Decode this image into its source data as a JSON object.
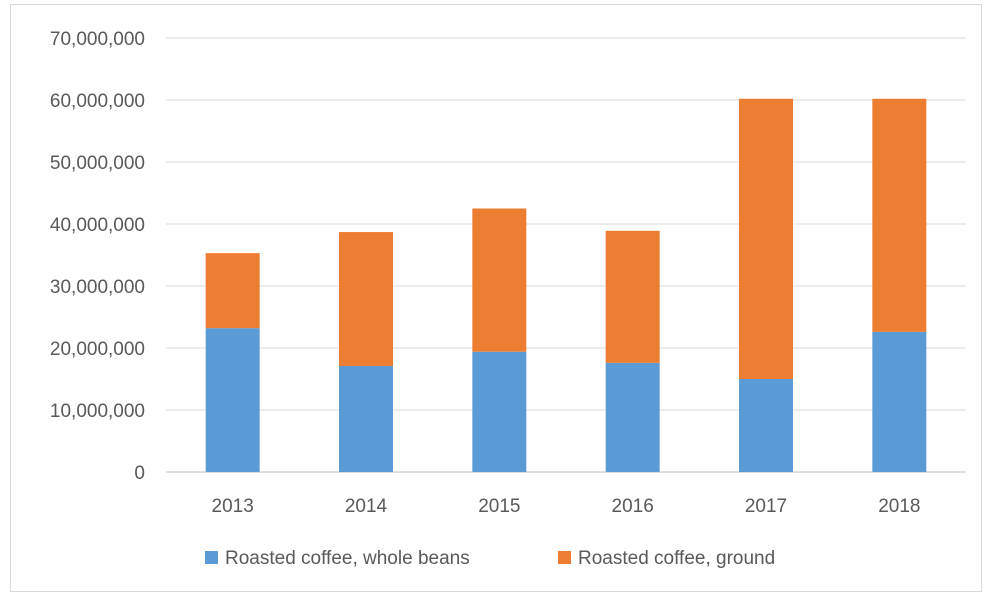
{
  "chart_data": {
    "type": "bar",
    "stacked": true,
    "categories": [
      "2013",
      "2014",
      "2015",
      "2016",
      "2017",
      "2018"
    ],
    "series": [
      {
        "name": "Roasted coffee, whole beans",
        "color": "#5b9bd5",
        "values": [
          23200000,
          17100000,
          19400000,
          17600000,
          15000000,
          22600000
        ]
      },
      {
        "name": "Roasted coffee, ground",
        "color": "#ed7d31",
        "values": [
          12100000,
          21600000,
          23100000,
          21300000,
          45200000,
          37600000
        ]
      }
    ],
    "title": "",
    "xlabel": "",
    "ylabel": "",
    "ylim": [
      0,
      70000000
    ],
    "yticks": [
      "0",
      "10,000,000",
      "20,000,000",
      "30,000,000",
      "40,000,000",
      "50,000,000",
      "60,000,000",
      "70,000,000"
    ],
    "grid": true,
    "legend": "bottom"
  }
}
